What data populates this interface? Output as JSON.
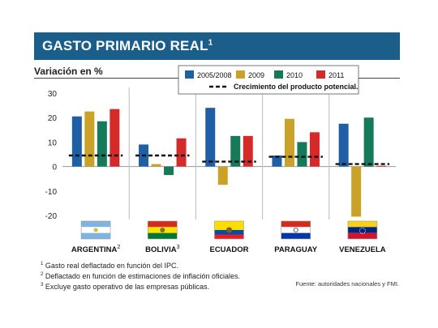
{
  "title": "GASTO PRIMARIO REAL",
  "title_note": "1",
  "subtitle": "Variación en %",
  "footnotes": [
    {
      "num": "1",
      "text": "Gasto real deflactado en función del IPC."
    },
    {
      "num": "2",
      "text": "Deflactado en función de estimaciones de inflación oficiales."
    },
    {
      "num": "3",
      "text": "Excluye gasto operativo de las empresas públicas."
    }
  ],
  "source": "Fuente: autoridades nacionales y FMI.",
  "colors": {
    "banner": "#1c5e8a",
    "2005/2008": "#1f5fa6",
    "2009": "#c9a227",
    "2010": "#167a5a",
    "2011": "#d42a2a"
  },
  "chart_data": {
    "type": "bar",
    "categories": [
      "ARGENTINA",
      "BOLIVIA",
      "ECUADOR",
      "PARAGUAY",
      "VENEZUELA"
    ],
    "category_notes": [
      "2",
      "3",
      "",
      "",
      ""
    ],
    "series": [
      {
        "name": "2005/2008",
        "values": [
          20.5,
          9,
          24,
          4.5,
          17.5
        ]
      },
      {
        "name": "2009",
        "values": [
          22.5,
          1,
          -7.5,
          19.5,
          -20.5
        ]
      },
      {
        "name": "2010",
        "values": [
          18.5,
          -3.5,
          12.5,
          10,
          20
        ]
      },
      {
        "name": "2011",
        "values": [
          23.5,
          11.5,
          12.5,
          14,
          0.3
        ]
      }
    ],
    "reference_line": {
      "name": "Crecimiento del producto potencial.",
      "values": [
        4.5,
        4.5,
        2,
        4,
        1
      ]
    },
    "yticks": [
      30,
      20,
      10,
      0,
      -10,
      -20
    ],
    "ylim": [
      -21,
      31
    ],
    "grid": false,
    "legend_position": "top-right",
    "flags": [
      "argentina-flag",
      "bolivia-flag",
      "ecuador-flag",
      "paraguay-flag",
      "venezuela-flag"
    ]
  }
}
